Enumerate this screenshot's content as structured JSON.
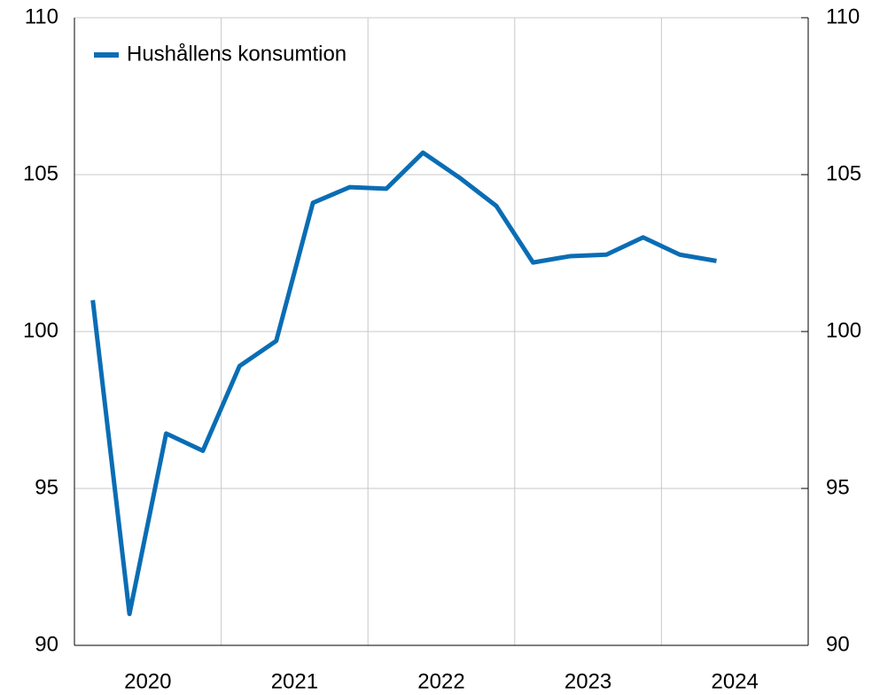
{
  "chart_data": {
    "type": "line",
    "categories": [
      "2020",
      null,
      null,
      null,
      "2021",
      null,
      null,
      null,
      "2022",
      null,
      null,
      null,
      "2023",
      null,
      null,
      null,
      "2024",
      null,
      null,
      null
    ],
    "series": [
      {
        "name": "Hushållens konsumtion",
        "color": "#0a6db4",
        "values": [
          101.0,
          91.0,
          96.75,
          96.2,
          98.9,
          99.7,
          104.1,
          104.6,
          104.55,
          105.7,
          104.9,
          104.0,
          102.2,
          102.4,
          102.45,
          103.0,
          102.45,
          102.25,
          null,
          null
        ]
      }
    ],
    "ylim": [
      90,
      110
    ],
    "yticks": [
      90,
      95,
      100,
      105,
      110
    ],
    "y2lim": [
      90,
      110
    ],
    "y2ticks": [
      90,
      95,
      100,
      105,
      110
    ],
    "grid": true,
    "legend": "top-left"
  }
}
